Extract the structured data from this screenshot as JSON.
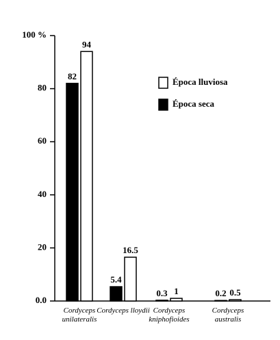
{
  "chart_data": {
    "type": "bar",
    "categories": [
      "Cordyceps unilateralis",
      "Cordyceps lloydii",
      "Cordyceps kniphofioides",
      "Cordyceps australis"
    ],
    "series": [
      {
        "name": "Época seca",
        "color": "#000000",
        "values": [
          82,
          5.4,
          0.3,
          0.2
        ]
      },
      {
        "name": "Época lluviosa",
        "color": "#ffffff",
        "values": [
          94,
          16.5,
          1,
          0.5
        ]
      }
    ],
    "ylim": [
      0,
      100
    ],
    "yticks": [
      {
        "value": 0,
        "label": "0.0"
      },
      20,
      40,
      60,
      80,
      {
        "value": 100,
        "label": "100 %"
      }
    ],
    "legend": "upper right"
  }
}
